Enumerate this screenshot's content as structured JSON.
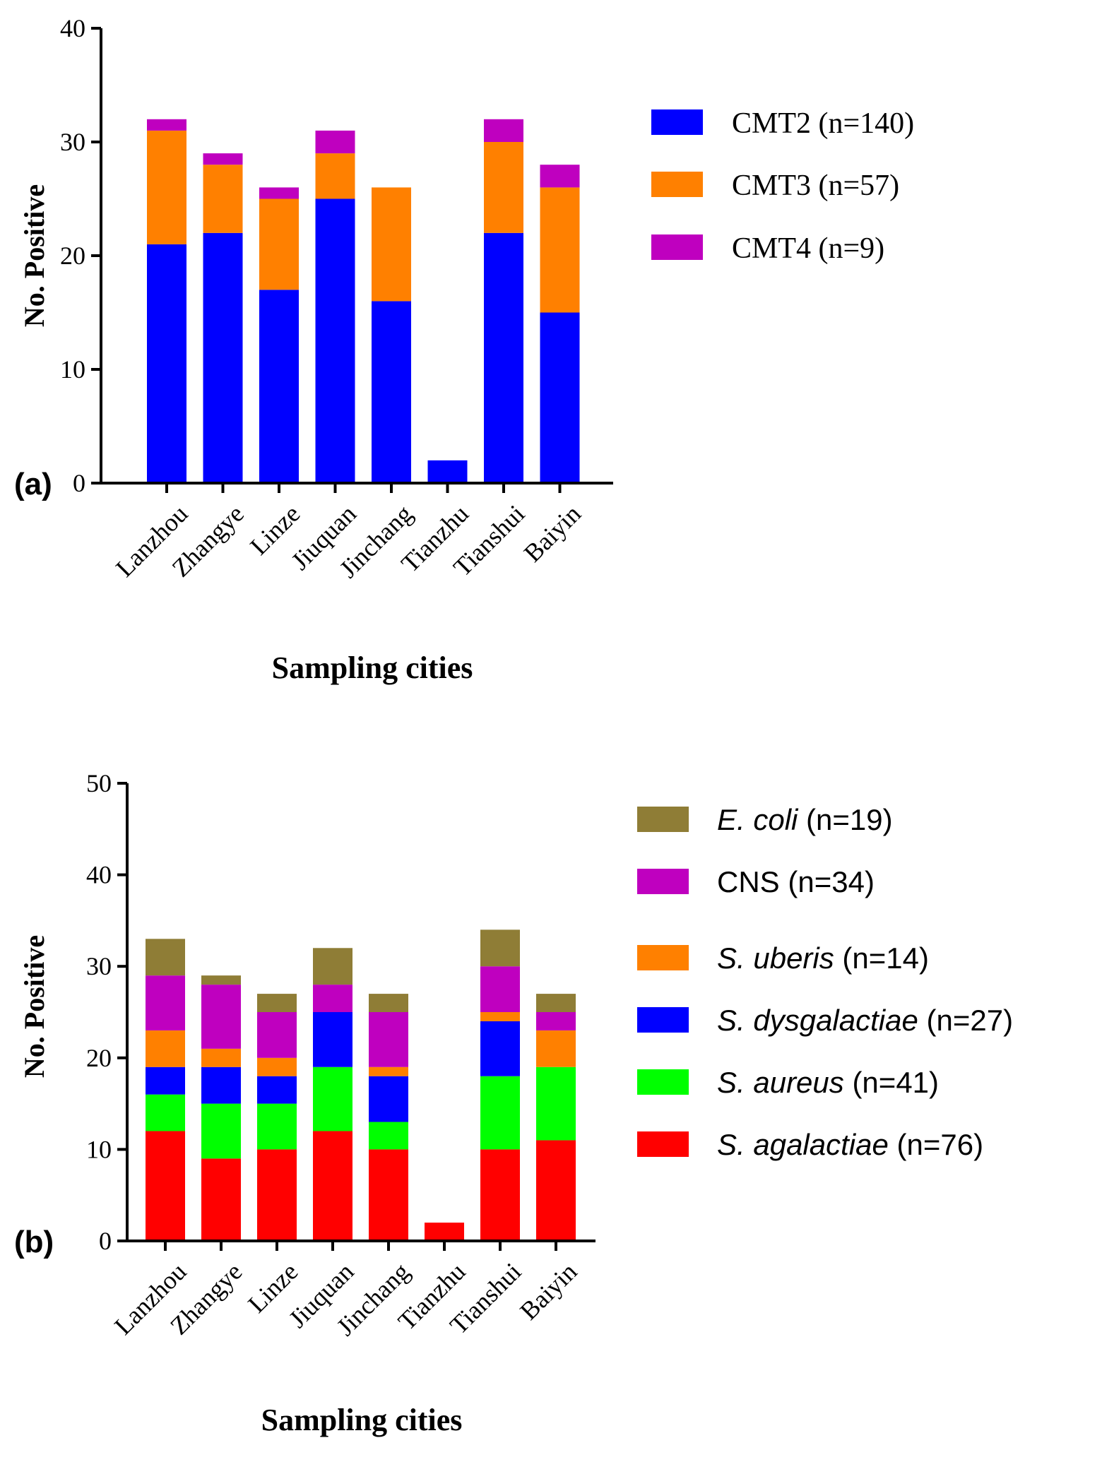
{
  "chart_data": [
    {
      "type": "bar",
      "stacked": true,
      "panel_label": "(a)",
      "title": "",
      "xlabel": "Sampling cities",
      "ylabel": "No. Positive",
      "ylim": [
        0,
        40
      ],
      "yticks": [
        0,
        10,
        20,
        30,
        40
      ],
      "categories": [
        "Lanzhou",
        "Zhangye",
        "Linze",
        "Jiuquan",
        "Jinchang",
        "Tianzhu",
        "Tianshui",
        "Baiyin"
      ],
      "series": [
        {
          "name": "CMT2",
          "legend_text": "CMT2 (n=140)",
          "color": "#0000ff",
          "values": [
            21,
            22,
            17,
            25,
            16,
            2,
            22,
            15
          ]
        },
        {
          "name": "CMT3",
          "legend_text": "CMT3 (n=57)",
          "color": "#ff8000",
          "values": [
            10,
            6,
            8,
            4,
            10,
            0,
            8,
            11
          ]
        },
        {
          "name": "CMT4",
          "legend_text": "CMT4 (n=9)",
          "color": "#bf00bf",
          "values": [
            1,
            1,
            1,
            2,
            0,
            0,
            2,
            2
          ]
        }
      ],
      "legend_position": "right"
    },
    {
      "type": "bar",
      "stacked": true,
      "panel_label": "(b)",
      "title": "",
      "xlabel": "Sampling cities",
      "ylabel": "No. Positive",
      "ylim": [
        0,
        50
      ],
      "yticks": [
        0,
        10,
        20,
        30,
        40,
        50
      ],
      "categories": [
        "Lanzhou",
        "Zhangye",
        "Linze",
        "Jiuquan",
        "Jinchang",
        "Tianzhu",
        "Tianshui",
        "Baiyin"
      ],
      "series": [
        {
          "name": "S. agalactiae",
          "italic": true,
          "count_text": "(n=76)",
          "color": "#ff0000",
          "values": [
            12,
            9,
            10,
            12,
            10,
            2,
            10,
            11
          ]
        },
        {
          "name": "S. aureus",
          "italic": true,
          "count_text": "(n=41)",
          "color": "#00ff00",
          "values": [
            4,
            6,
            5,
            7,
            3,
            0,
            8,
            8
          ]
        },
        {
          "name": "S. dysgalactiae",
          "italic": true,
          "count_text": "(n=27)",
          "color": "#0000ff",
          "values": [
            3,
            4,
            3,
            6,
            5,
            0,
            6,
            0
          ]
        },
        {
          "name": "S. uberis",
          "italic": true,
          "count_text": "(n=14)",
          "color": "#ff8000",
          "values": [
            4,
            2,
            2,
            0,
            1,
            0,
            1,
            4
          ]
        },
        {
          "name": "CNS",
          "italic": false,
          "count_text": "(n=34)",
          "color": "#bf00bf",
          "values": [
            6,
            7,
            5,
            3,
            6,
            0,
            5,
            2
          ]
        },
        {
          "name": "E. coli",
          "italic": true,
          "count_text": "(n=19)",
          "color": "#8f7d36",
          "values": [
            4,
            1,
            2,
            4,
            2,
            0,
            4,
            2
          ]
        }
      ],
      "legend_position": "right"
    }
  ]
}
